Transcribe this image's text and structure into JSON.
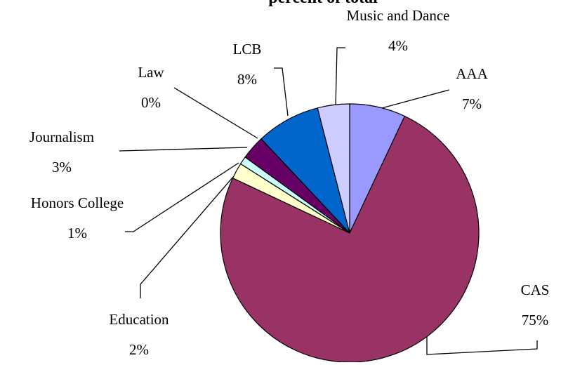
{
  "chart_data": {
    "type": "pie",
    "title": "percent of total",
    "categories": [
      "AAA",
      "CAS",
      "Education",
      "Honors College",
      "Journalism",
      "Law",
      "LCB",
      "Music and Dance"
    ],
    "values": [
      7,
      75,
      2,
      1,
      3,
      0,
      8,
      4
    ],
    "value_labels": [
      "7%",
      "75%",
      "2%",
      "1%",
      "3%",
      "0%",
      "8%",
      "4%"
    ],
    "colors": [
      "#9999ff",
      "#993366",
      "#ffffcc",
      "#ccffff",
      "#660066",
      "#ff8080",
      "#0066cc",
      "#ccccff"
    ]
  }
}
